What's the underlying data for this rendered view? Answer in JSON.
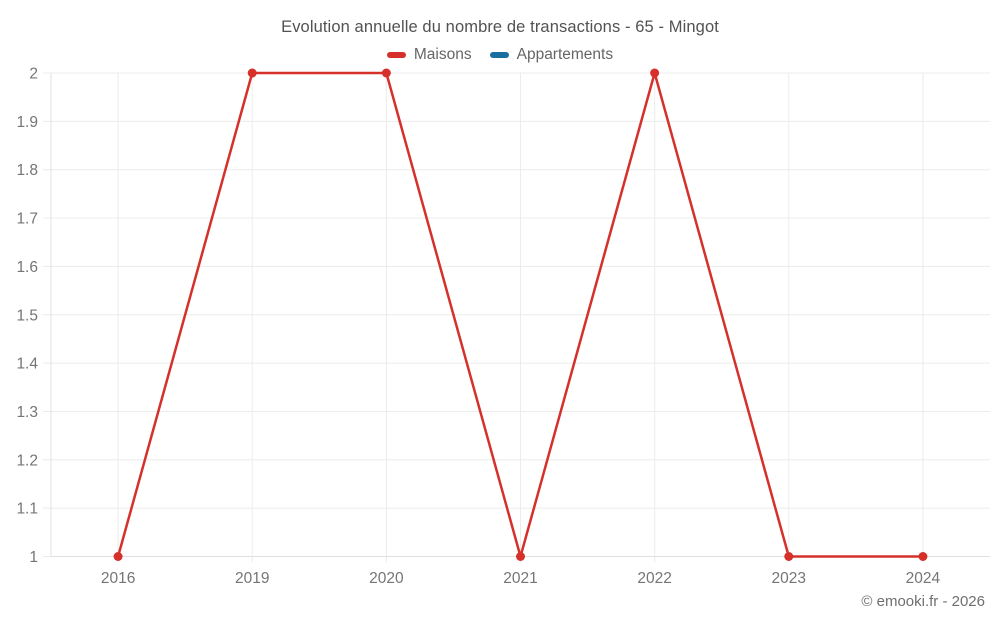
{
  "chart_data": {
    "type": "line",
    "title": "Evolution annuelle du nombre de transactions - 65 - Mingot",
    "categories": [
      "2016",
      "2019",
      "2020",
      "2021",
      "2022",
      "2023",
      "2024"
    ],
    "series": [
      {
        "name": "Maisons",
        "color": "#d6302b",
        "values": [
          1,
          2,
          2,
          1,
          2,
          1,
          1
        ]
      },
      {
        "name": "Appartements",
        "color": "#1a6fa0",
        "values": []
      }
    ],
    "yticks": [
      "1",
      "1.1",
      "1.2",
      "1.3",
      "1.4",
      "1.5",
      "1.6",
      "1.7",
      "1.8",
      "1.9",
      "2"
    ],
    "ylim": [
      1,
      2
    ],
    "xlabel": "",
    "ylabel": "",
    "grid": true,
    "legend_position": "top"
  },
  "copyright": "© emooki.fr - 2026"
}
